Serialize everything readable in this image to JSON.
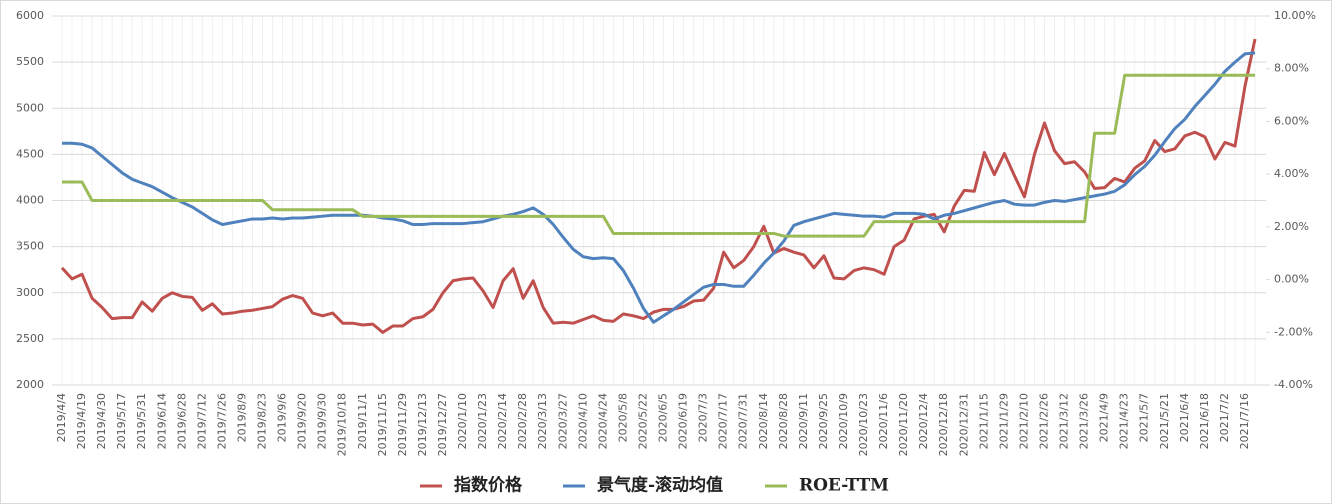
{
  "chart_data": {
    "type": "line",
    "legend": "bottom",
    "grid": true,
    "categories": [
      "2019/4/4",
      null,
      "2019/4/19",
      null,
      "2019/4/30",
      null,
      "2019/5/17",
      null,
      "2019/5/31",
      null,
      "2019/6/14",
      null,
      "2019/6/28",
      null,
      "2019/7/12",
      null,
      "2019/7/26",
      null,
      "2019/8/9",
      null,
      "2019/8/23",
      null,
      "2019/9/6",
      null,
      "2019/9/20",
      null,
      "2019/9/30",
      null,
      "2019/10/18",
      null,
      "2019/11/1",
      null,
      "2019/11/15",
      null,
      "2019/11/29",
      null,
      "2019/12/13",
      null,
      "2019/12/27",
      null,
      "2020/1/10",
      null,
      "2020/1/23",
      null,
      "2020/2/14",
      null,
      "2020/2/28",
      null,
      "2020/3/13",
      null,
      "2020/3/27",
      null,
      "2020/4/10",
      null,
      "2020/4/24",
      null,
      "2020/5/8",
      null,
      "2020/5/22",
      null,
      "2020/6/5",
      null,
      "2020/6/19",
      null,
      "2020/7/3",
      null,
      "2020/7/17",
      null,
      "2020/7/31",
      null,
      "2020/8/14",
      null,
      "2020/8/28",
      null,
      "2020/9/11",
      null,
      "2020/9/25",
      null,
      "2020/10/9",
      null,
      "2020/10/23",
      null,
      "2020/11/6",
      null,
      "2020/11/20",
      null,
      "2020/12/4",
      null,
      "2020/12/18",
      null,
      "2020/12/31",
      null,
      "2021/1/15",
      null,
      "2021/1/29",
      null,
      "2021/2/10",
      null,
      "2021/2/26",
      null,
      "2021/3/12",
      null,
      "2021/3/26",
      null,
      "2021/4/9",
      null,
      "2021/4/23",
      null,
      "2021/5/7",
      null,
      "2021/5/21",
      null,
      "2021/6/4",
      null,
      "2021/6/18",
      null,
      "2021/7/2",
      null,
      "2021/7/16",
      null
    ],
    "ylim": [
      2000,
      6000
    ],
    "yticks": [
      2000,
      2500,
      3000,
      3500,
      4000,
      4500,
      5000,
      5500,
      6000
    ],
    "y2lim": [
      -4,
      10
    ],
    "y2ticks": [
      {
        "value": -4,
        "label": "-4.00%"
      },
      {
        "value": -2,
        "label": "-2.00%"
      },
      {
        "value": 0,
        "label": "0.00%"
      },
      {
        "value": 2,
        "label": "2.00%"
      },
      {
        "value": 4,
        "label": "4.00%"
      },
      {
        "value": 6,
        "label": "6.00%"
      },
      {
        "value": 8,
        "label": "8.00%"
      },
      {
        "value": 10,
        "label": "10.00%"
      }
    ],
    "series": [
      {
        "name": "指数价格",
        "color": "#c0504d",
        "values": [
          3270,
          3150,
          3200,
          2940,
          2840,
          2720,
          2730,
          2730,
          2900,
          2800,
          2940,
          3000,
          2960,
          2950,
          2810,
          2880,
          2770,
          2780,
          2800,
          2810,
          2830,
          2850,
          2930,
          2970,
          2940,
          2780,
          2750,
          2780,
          2670,
          2670,
          2650,
          2660,
          2570,
          2640,
          2640,
          2720,
          2740,
          2820,
          3000,
          3130,
          3150,
          3160,
          3020,
          2840,
          3130,
          3260,
          2940,
          3130,
          2840,
          2670,
          2680,
          2670,
          2710,
          2750,
          2700,
          2690,
          2770,
          2750,
          2720,
          2790,
          2820,
          2820,
          2850,
          2910,
          2920,
          3050,
          3440,
          3270,
          3350,
          3500,
          3720,
          3430,
          3480,
          3440,
          3410,
          3270,
          3400,
          3160,
          3150,
          3240,
          3270,
          3250,
          3200,
          3500,
          3570,
          3800,
          3830,
          3850,
          3660,
          3940,
          4110,
          4100,
          4520,
          4280,
          4510,
          4270,
          4040,
          4500,
          4840,
          4540,
          4400,
          4420,
          4310,
          4130,
          4140,
          4240,
          4200,
          4350,
          4430,
          4650,
          4530,
          4560,
          4700,
          4740,
          4690,
          4450,
          4630,
          4590,
          5240,
          5750
        ]
      },
      {
        "name": "景气度-滚动均值",
        "color": "#4f81bd",
        "values": [
          4620,
          4620,
          4610,
          4570,
          4480,
          4390,
          4300,
          4230,
          4190,
          4150,
          4090,
          4030,
          3980,
          3930,
          3860,
          3790,
          3740,
          3760,
          3780,
          3800,
          3800,
          3810,
          3800,
          3810,
          3810,
          3820,
          3830,
          3840,
          3840,
          3840,
          3840,
          3830,
          3810,
          3800,
          3780,
          3740,
          3740,
          3750,
          3750,
          3750,
          3750,
          3760,
          3770,
          3800,
          3830,
          3850,
          3880,
          3920,
          3850,
          3740,
          3600,
          3470,
          3390,
          3370,
          3380,
          3370,
          3240,
          3050,
          2830,
          2680,
          2750,
          2820,
          2900,
          2980,
          3060,
          3090,
          3090,
          3070,
          3070,
          3190,
          3320,
          3430,
          3560,
          3730,
          3770,
          3800,
          3830,
          3860,
          3850,
          3840,
          3830,
          3830,
          3820,
          3860,
          3860,
          3860,
          3850,
          3800,
          3840,
          3860,
          3890,
          3920,
          3950,
          3980,
          4000,
          3960,
          3950,
          3950,
          3980,
          4000,
          3990,
          4010,
          4030,
          4050,
          4070,
          4100,
          4170,
          4280,
          4370,
          4490,
          4640,
          4780,
          4880,
          5020,
          5140,
          5260,
          5400,
          5500,
          5590,
          5600
        ]
      },
      {
        "name": "ROE-TTM",
        "color": "#9bbb59",
        "axis": "y2",
        "values": [
          3.7,
          3.7,
          3.7,
          3,
          3,
          3,
          3,
          3,
          3,
          3,
          3,
          3,
          3,
          3,
          3,
          3,
          3,
          3,
          3,
          3,
          3,
          2.65,
          2.65,
          2.65,
          2.65,
          2.65,
          2.65,
          2.65,
          2.65,
          2.65,
          2.4,
          2.4,
          2.4,
          2.4,
          2.4,
          2.4,
          2.4,
          2.4,
          2.4,
          2.4,
          2.4,
          2.4,
          2.4,
          2.4,
          2.4,
          2.4,
          2.4,
          2.4,
          2.4,
          2.4,
          2.4,
          2.4,
          2.4,
          2.4,
          2.4,
          1.75,
          1.75,
          1.75,
          1.75,
          1.75,
          1.75,
          1.75,
          1.75,
          1.75,
          1.75,
          1.75,
          1.75,
          1.75,
          1.75,
          1.75,
          1.75,
          1.75,
          1.65,
          1.65,
          1.65,
          1.65,
          1.65,
          1.65,
          1.65,
          1.65,
          1.65,
          2.2,
          2.2,
          2.2,
          2.2,
          2.2,
          2.2,
          2.2,
          2.2,
          2.2,
          2.2,
          2.2,
          2.2,
          2.2,
          2.2,
          2.2,
          2.2,
          2.2,
          2.2,
          2.2,
          2.2,
          2.2,
          2.2,
          5.55,
          5.55,
          5.55,
          7.75,
          7.75,
          7.75,
          7.75,
          7.75,
          7.75,
          7.75,
          7.75,
          7.75,
          7.75,
          7.75,
          7.75,
          7.75,
          7.75
        ]
      }
    ]
  }
}
